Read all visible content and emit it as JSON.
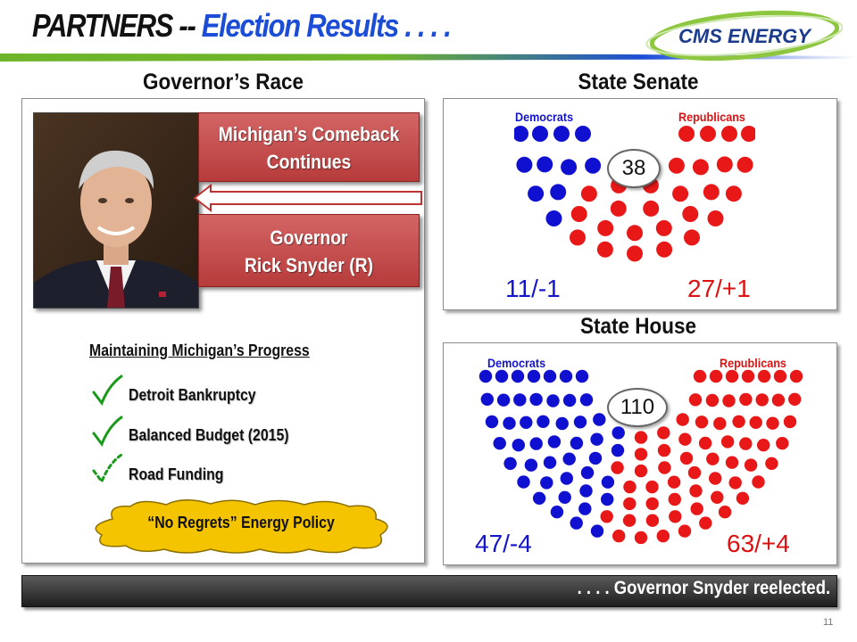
{
  "header": {
    "title_part1": "PARTNERS -- ",
    "title_part2": "Election Results . . . .",
    "logo_text": "CMS ENERGY",
    "colors": {
      "title_blue": "#1b4dd6",
      "rule_green": "#6fb52c",
      "rule_blue": "#1b4dd6"
    }
  },
  "governor": {
    "section_title": "Governor’s Race",
    "photo_icon": "portrait-photo",
    "comeback_lines": [
      "Michigan’s Comeback",
      "Continues"
    ],
    "governor_lines": [
      "Governor",
      "Rick Snyder (R)"
    ],
    "progress_heading": "Maintaining Michigan’s Progress",
    "items": [
      {
        "label": "Detroit Bankruptcy",
        "icon": "check-icon",
        "status": "complete"
      },
      {
        "label": "Balanced Budget (2015)",
        "icon": "check-icon",
        "status": "complete"
      },
      {
        "label": "Road Funding",
        "icon": "dashed-check-icon",
        "status": "pending"
      }
    ],
    "cloud_label": "“No Regrets” Energy Policy",
    "colors": {
      "red_box": "#c44b4b",
      "check_green": "#1a9a1a",
      "cloud_yellow": "#f5c400"
    }
  },
  "senate": {
    "section_title": "State Senate",
    "dem_label": "Democrats",
    "rep_label": "Republicans",
    "total": "38",
    "dem_result": "11/-1",
    "rep_result": "27/+1",
    "dem_seats": 11,
    "rep_seats": 27
  },
  "house": {
    "section_title": "State House",
    "dem_label": "Democrats",
    "rep_label": "Republicans",
    "total": "110",
    "dem_result": "47/-4",
    "rep_result": "63/+4",
    "dem_seats": 47,
    "rep_seats": 63
  },
  "colors": {
    "democrat": "#1010d0",
    "republican": "#e81818"
  },
  "footer": {
    "text": ". . . . Governor Snyder reelected.",
    "page_number": "11"
  }
}
